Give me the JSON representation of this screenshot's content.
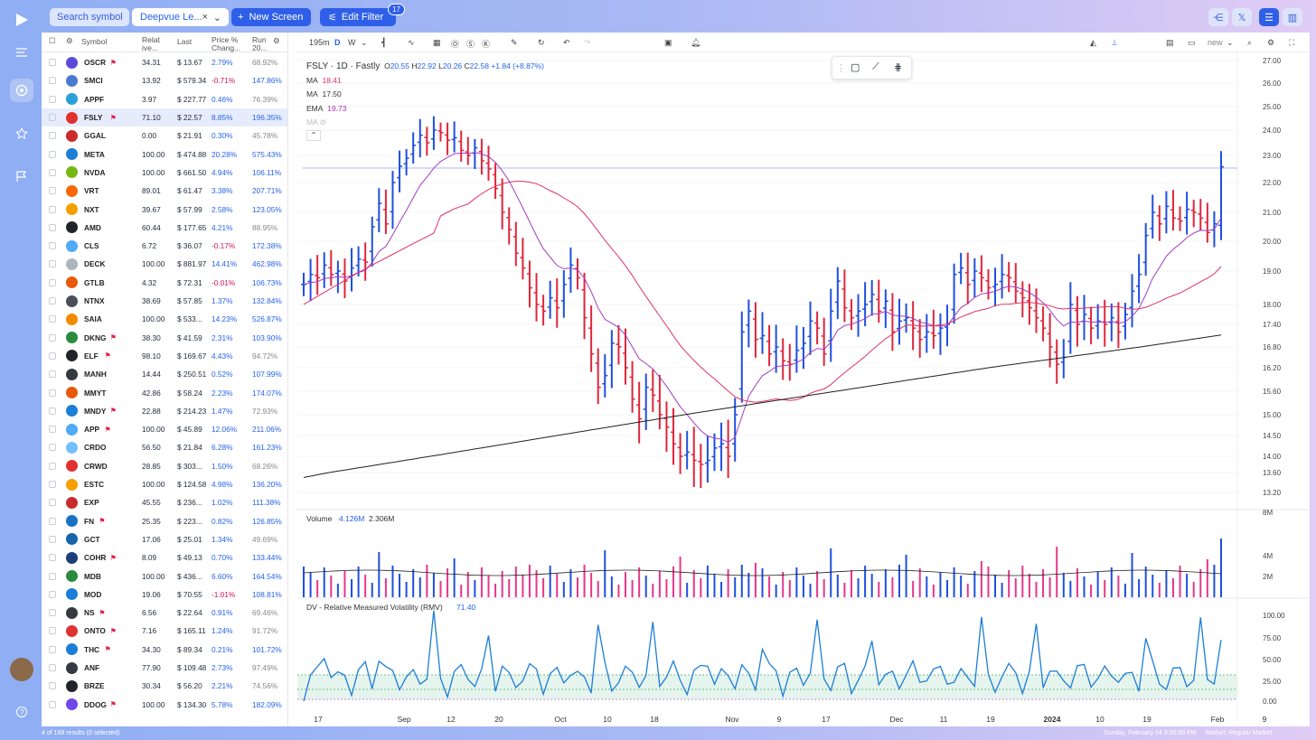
{
  "toolbar": {
    "search": "Search symbol",
    "screen_tab": "Deepvue Le...",
    "new_screen": "New Screen",
    "edit_filter": "Edit Filter",
    "filter_count": "17"
  },
  "watchlist": {
    "headers": {
      "symbol": "Symbol",
      "rel": "Relat ive...",
      "last": "Last",
      "chg": "Price % Chang...",
      "run": "Run 20..."
    },
    "rows": [
      {
        "sym": "OSCR",
        "flag": true,
        "rv": "34.31",
        "last": "$ 13.67",
        "chg": "2.79%",
        "run": "68.92%",
        "color": "#5b4bdb"
      },
      {
        "sym": "SMCI",
        "flag": false,
        "rv": "13.92",
        "last": "$ 579.34",
        "chg": "-0.71%",
        "run": "147.86%",
        "color": "#4a7bd0"
      },
      {
        "sym": "APPF",
        "flag": false,
        "rv": "3.97",
        "last": "$ 227.77",
        "chg": "0.46%",
        "run": "76.39%",
        "color": "#2aa0d8"
      },
      {
        "sym": "FSLY",
        "flag": true,
        "rv": "71.10",
        "last": "$ 22.57",
        "chg": "8.85%",
        "run": "196.35%",
        "color": "#e03131"
      },
      {
        "sym": "GGAL",
        "flag": false,
        "rv": "0.00",
        "last": "$ 21.91",
        "chg": "0.30%",
        "run": "45.78%",
        "color": "#c92a2a"
      },
      {
        "sym": "META",
        "flag": false,
        "rv": "100.00",
        "last": "$ 474.88",
        "chg": "20.28%",
        "run": "575.43%",
        "color": "#1c7ed6"
      },
      {
        "sym": "NVDA",
        "flag": false,
        "rv": "100.00",
        "last": "$ 661.50",
        "chg": "4.94%",
        "run": "106.11%",
        "color": "#74b816"
      },
      {
        "sym": "VRT",
        "flag": false,
        "rv": "89.01",
        "last": "$ 61.47",
        "chg": "3.38%",
        "run": "207.71%",
        "color": "#f76707"
      },
      {
        "sym": "NXT",
        "flag": false,
        "rv": "39.67",
        "last": "$ 57.99",
        "chg": "2.58%",
        "run": "123.05%",
        "color": "#f59f00"
      },
      {
        "sym": "AMD",
        "flag": false,
        "rv": "60.44",
        "last": "$ 177.65",
        "chg": "4.21%",
        "run": "88.95%",
        "color": "#212529"
      },
      {
        "sym": "CLS",
        "flag": false,
        "rv": "6.72",
        "last": "$ 36.07",
        "chg": "-0.17%",
        "run": "172.38%",
        "color": "#4dabf7"
      },
      {
        "sym": "DECK",
        "flag": false,
        "rv": "100.00",
        "last": "$ 881.97",
        "chg": "14.41%",
        "run": "462.98%",
        "color": "#adb5bd"
      },
      {
        "sym": "GTLB",
        "flag": false,
        "rv": "4.32",
        "last": "$ 72.31",
        "chg": "-0.01%",
        "run": "106.73%",
        "color": "#e8590c"
      },
      {
        "sym": "NTNX",
        "flag": false,
        "rv": "38.69",
        "last": "$ 57.85",
        "chg": "1.37%",
        "run": "132.84%",
        "color": "#495057"
      },
      {
        "sym": "SAIA",
        "flag": false,
        "rv": "100.00",
        "last": "$ 533...",
        "chg": "14.23%",
        "run": "526.87%",
        "color": "#f08c00"
      },
      {
        "sym": "DKNG",
        "flag": true,
        "rv": "38.30",
        "last": "$ 41.59",
        "chg": "2.31%",
        "run": "103.90%",
        "color": "#2b8a3e"
      },
      {
        "sym": "ELF",
        "flag": true,
        "rv": "98.10",
        "last": "$ 169.67",
        "chg": "4.43%",
        "run": "94.72%",
        "color": "#212529"
      },
      {
        "sym": "MANH",
        "flag": false,
        "rv": "14.44",
        "last": "$ 250.51",
        "chg": "0.52%",
        "run": "107.99%",
        "color": "#343a40"
      },
      {
        "sym": "MMYT",
        "flag": false,
        "rv": "42.86",
        "last": "$ 58.24",
        "chg": "2.23%",
        "run": "174.07%",
        "color": "#e8590c"
      },
      {
        "sym": "MNDY",
        "flag": true,
        "rv": "22.88",
        "last": "$ 214.23",
        "chg": "1.47%",
        "run": "72.93%",
        "color": "#1c7ed6"
      },
      {
        "sym": "APP",
        "flag": true,
        "rv": "100.00",
        "last": "$ 45.89",
        "chg": "12.06%",
        "run": "211.06%",
        "color": "#4dabf7"
      },
      {
        "sym": "CRDO",
        "flag": false,
        "rv": "56.50",
        "last": "$ 21.84",
        "chg": "6.28%",
        "run": "161.23%",
        "color": "#74c0fc"
      },
      {
        "sym": "CRWD",
        "flag": false,
        "rv": "28.85",
        "last": "$ 303...",
        "chg": "1.50%",
        "run": "68.26%",
        "color": "#e03131"
      },
      {
        "sym": "ESTC",
        "flag": false,
        "rv": "100.00",
        "last": "$ 124.58",
        "chg": "4.98%",
        "run": "136.20%",
        "color": "#f59f00"
      },
      {
        "sym": "EXP",
        "flag": false,
        "rv": "45.55",
        "last": "$ 236...",
        "chg": "1.02%",
        "run": "111.38%",
        "color": "#c92a2a"
      },
      {
        "sym": "FN",
        "flag": true,
        "rv": "25.35",
        "last": "$ 223...",
        "chg": "0.82%",
        "run": "126.85%",
        "color": "#1971c2"
      },
      {
        "sym": "GCT",
        "flag": false,
        "rv": "17.06",
        "last": "$ 25.01",
        "chg": "1.34%",
        "run": "49.69%",
        "color": "#1864ab"
      },
      {
        "sym": "COHR",
        "flag": true,
        "rv": "8.09",
        "last": "$ 49.13",
        "chg": "0.70%",
        "run": "133.44%",
        "color": "#1c3d7a"
      },
      {
        "sym": "MDB",
        "flag": false,
        "rv": "100.00",
        "last": "$ 436...",
        "chg": "6.60%",
        "run": "164.54%",
        "color": "#2b8a3e"
      },
      {
        "sym": "MOD",
        "flag": false,
        "rv": "19.06",
        "last": "$ 70.55",
        "chg": "-1.01%",
        "run": "108.81%",
        "color": "#1c7ed6"
      },
      {
        "sym": "NS",
        "flag": true,
        "rv": "6.56",
        "last": "$ 22.64",
        "chg": "0.91%",
        "run": "69.46%",
        "color": "#343a40"
      },
      {
        "sym": "ONTO",
        "flag": true,
        "rv": "7.16",
        "last": "$ 165.11",
        "chg": "1.24%",
        "run": "91.72%",
        "color": "#e03131"
      },
      {
        "sym": "THC",
        "flag": true,
        "rv": "34.30",
        "last": "$ 89.34",
        "chg": "0.21%",
        "run": "101.72%",
        "color": "#1c7ed6"
      },
      {
        "sym": "ANF",
        "flag": false,
        "rv": "77.90",
        "last": "$ 109.48",
        "chg": "2.73%",
        "run": "97.49%",
        "color": "#343a40"
      },
      {
        "sym": "BRZE",
        "flag": false,
        "rv": "30.34",
        "last": "$ 56.20",
        "chg": "2.21%",
        "run": "74.56%",
        "color": "#212529"
      },
      {
        "sym": "DDOG",
        "flag": true,
        "rv": "100.00",
        "last": "$ 134.30",
        "chg": "5.78%",
        "run": "182.09%",
        "color": "#7048e8"
      }
    ]
  },
  "chart": {
    "interval": "195m",
    "d": "D",
    "w": "W",
    "layout": "new",
    "legend": {
      "title": "FSLY · 1D · Fastly",
      "o": "O",
      "ov": "20.55",
      "h": "H",
      "hv": "22.92",
      "l": "L",
      "lv": "20.26",
      "c": "C",
      "cv": "22.58",
      "chg": "+1.84 (+8.87%)",
      "ma1": "MA",
      "ma1v": "18.41",
      "ma2": "MA",
      "ma2v": "17.50",
      "ema": "EMA",
      "emav": "19.73",
      "ma3": "MA"
    },
    "price_ticks": [
      "27.00",
      "26.00",
      "25.00",
      "24.00",
      "23.00",
      "22.00",
      "21.00",
      "20.00",
      "19.00",
      "18.00",
      "17.40",
      "16.80",
      "16.20",
      "15.60",
      "15.00",
      "14.50",
      "14.00",
      "13.60",
      "13.20"
    ],
    "volume": {
      "label": "Volume",
      "v1": "4.126M",
      "v2": "2.306M",
      "ticks": [
        "8M",
        "4M",
        "2M"
      ]
    },
    "rmv": {
      "label": "DV - Relative Measured Volatility (RMV)",
      "value": "71.40",
      "ticks": [
        "100.00",
        "75.00",
        "50.00",
        "25.00",
        "0.00"
      ]
    },
    "x_ticks": [
      "17",
      "Sep",
      "12",
      "20",
      "Oct",
      "10",
      "18",
      "Nov",
      "9",
      "17",
      "Dec",
      "11",
      "19",
      "2024",
      "10",
      "19",
      "Feb",
      "9"
    ]
  },
  "footer": {
    "count": "4 of 168 results (0 selected)",
    "time": "Sunday, February 04 3:35:08 PM",
    "market": "Market: Regular Market"
  }
}
